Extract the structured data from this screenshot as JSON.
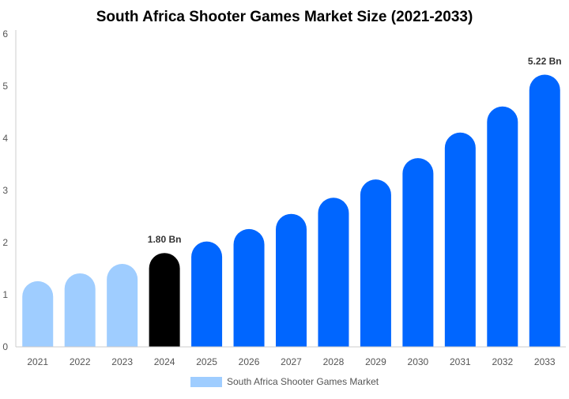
{
  "chart_data": {
    "type": "bar",
    "title": "South Africa Shooter Games Market Size (2021-2033)",
    "xlabel": "",
    "ylabel": "",
    "ylim": [
      0,
      6
    ],
    "yticks": [
      "0",
      "1",
      "2",
      "3",
      "4",
      "5",
      "6"
    ],
    "grid": false,
    "legend_position": "bottom",
    "categories": [
      "2021",
      "2022",
      "2023",
      "2024",
      "2025",
      "2026",
      "2027",
      "2028",
      "2029",
      "2030",
      "2031",
      "2032",
      "2033"
    ],
    "series": [
      {
        "name": "South Africa Shooter Games Market",
        "values": [
          1.26,
          1.41,
          1.59,
          1.8,
          2.02,
          2.26,
          2.55,
          2.86,
          3.21,
          3.62,
          4.11,
          4.61,
          5.22
        ]
      }
    ],
    "data_labels": {
      "2024": "1.80 Bn",
      "2033": "5.22 Bn"
    },
    "colors": {
      "historic": "#9fcdff",
      "base_year": "#000000",
      "forecast": "#0066ff",
      "axis": "#cccccc",
      "tick_text": "#555555"
    }
  }
}
